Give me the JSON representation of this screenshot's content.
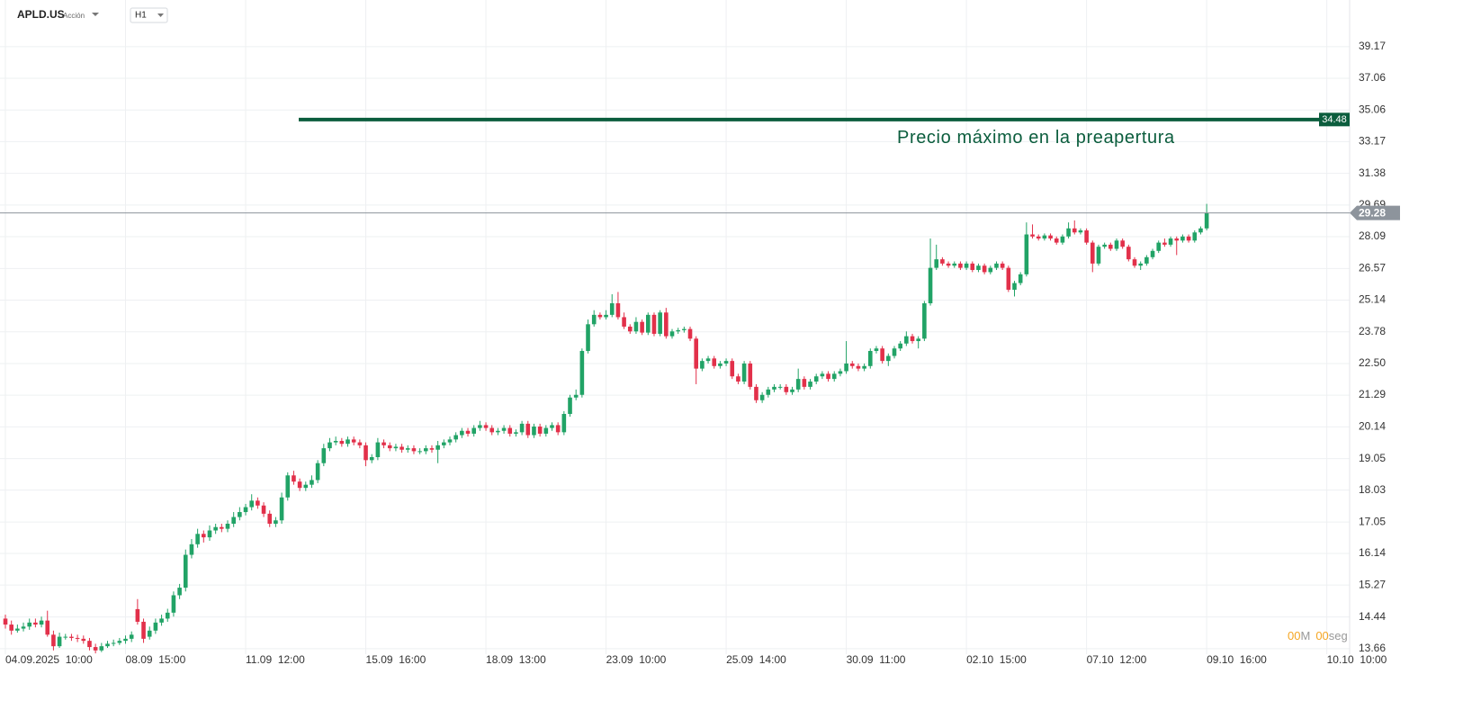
{
  "chart_data": {
    "type": "candlestick",
    "title": "APLD.US",
    "subtitle": "Acción",
    "timeframe": "H1",
    "up_color": "#21a366",
    "down_color": "#e2304a",
    "grid": true,
    "log_scale": true,
    "ylim": [
      13.53,
      42.5
    ],
    "yticks": [
      13.66,
      14.44,
      15.27,
      16.14,
      17.05,
      18.03,
      19.05,
      20.14,
      21.29,
      {
        "value": 22.5,
        "label": "22.50"
      },
      23.78,
      25.14,
      26.57,
      28.09,
      29.69,
      31.38,
      33.17,
      35.06,
      37.06,
      39.17
    ],
    "xlim": [
      -0.9,
      223.8
    ],
    "xticks": [
      {
        "value": 0,
        "label": "04.09.2025  10:00"
      },
      {
        "value": 20,
        "label": "08.09  15:00"
      },
      {
        "value": 40,
        "label": "11.09  12:00"
      },
      {
        "value": 60,
        "label": "15.09  16:00"
      },
      {
        "value": 80,
        "label": "18.09  13:00"
      },
      {
        "value": 100,
        "label": "23.09  10:00"
      },
      {
        "value": 120,
        "label": "25.09  14:00"
      },
      {
        "value": 140,
        "label": "30.09  11:00"
      },
      {
        "value": 160,
        "label": "02.10  15:00"
      },
      {
        "value": 180,
        "label": "07.10  12:00"
      },
      {
        "value": 200,
        "label": "09.10  16:00"
      },
      {
        "value": 220,
        "label": "10.10  10:00"
      }
    ],
    "series": {
      "open": [
        14.4,
        14.25,
        14.1,
        14.15,
        14.2,
        14.3,
        14.25,
        14.35,
        14.0,
        13.72,
        13.95,
        13.95,
        13.92,
        13.9,
        13.85,
        13.7,
        13.62,
        13.72,
        13.78,
        13.8,
        13.85,
        13.9,
        14.64,
        14.32,
        13.95,
        14.1,
        14.3,
        14.4,
        14.55,
        15.0,
        15.2,
        16.1,
        16.4,
        16.7,
        16.6,
        16.8,
        16.9,
        16.85,
        17.0,
        17.2,
        17.35,
        17.5,
        17.7,
        17.55,
        17.3,
        17.0,
        17.1,
        17.8,
        18.5,
        18.3,
        18.1,
        18.2,
        18.35,
        18.9,
        19.4,
        19.6,
        19.65,
        19.55,
        19.7,
        19.6,
        19.5,
        19.0,
        19.1,
        19.6,
        19.5,
        19.4,
        19.45,
        19.35,
        19.4,
        19.3,
        19.3,
        19.4,
        19.35,
        19.5,
        19.6,
        19.7,
        19.85,
        20.0,
        19.9,
        20.1,
        20.2,
        20.1,
        19.95,
        20.0,
        20.1,
        19.9,
        19.95,
        20.25,
        19.85,
        20.15,
        19.9,
        20.1,
        20.2,
        19.95,
        20.6,
        21.2,
        21.3,
        23.0,
        24.1,
        24.5,
        24.4,
        24.5,
        25.0,
        24.4,
        24.0,
        23.8,
        24.2,
        23.75,
        24.5,
        23.7,
        24.6,
        23.6,
        23.8,
        23.85,
        23.9,
        23.5,
        22.3,
        22.6,
        22.7,
        22.4,
        22.5,
        22.6,
        22.0,
        21.8,
        22.5,
        21.6,
        21.1,
        21.3,
        21.5,
        21.6,
        21.6,
        21.4,
        21.5,
        21.9,
        21.6,
        21.8,
        22.0,
        22.1,
        21.9,
        22.1,
        22.2,
        22.5,
        22.4,
        22.3,
        22.4,
        23.0,
        23.1,
        22.6,
        22.8,
        23.1,
        23.3,
        23.6,
        23.4,
        23.5,
        25.0,
        26.6,
        27.0,
        26.8,
        26.7,
        26.8,
        26.6,
        26.8,
        26.5,
        26.7,
        26.4,
        26.6,
        26.8,
        26.6,
        25.6,
        25.9,
        26.3,
        28.2,
        28.1,
        28.0,
        28.15,
        28.0,
        27.8,
        28.1,
        28.5,
        28.3,
        28.4,
        27.8,
        26.8,
        27.6,
        27.7,
        27.5,
        27.9,
        27.6,
        27.0,
        26.7,
        26.8,
        27.1,
        27.4,
        27.8,
        27.7,
        28.0,
        27.9,
        28.1,
        27.9,
        28.3,
        28.5
      ],
      "high": [
        14.5,
        14.35,
        14.25,
        14.3,
        14.4,
        14.4,
        14.45,
        14.6,
        14.1,
        14.05,
        14.02,
        14.02,
        14.0,
        13.98,
        13.92,
        13.78,
        13.8,
        13.85,
        13.88,
        13.92,
        13.98,
        14.08,
        14.9,
        14.4,
        14.2,
        14.4,
        14.5,
        14.65,
        15.1,
        15.3,
        16.25,
        16.55,
        16.85,
        16.8,
        16.95,
        17.0,
        17.0,
        17.1,
        17.35,
        17.5,
        17.6,
        17.9,
        17.8,
        17.65,
        17.4,
        17.2,
        17.95,
        18.6,
        18.65,
        18.4,
        18.3,
        18.5,
        19.0,
        19.55,
        19.75,
        19.8,
        19.75,
        19.8,
        19.8,
        19.7,
        19.6,
        19.2,
        19.75,
        19.7,
        19.6,
        19.55,
        19.55,
        19.5,
        19.5,
        19.4,
        19.5,
        19.5,
        19.65,
        19.7,
        19.8,
        19.95,
        20.1,
        20.1,
        20.2,
        20.35,
        20.3,
        20.2,
        20.1,
        20.2,
        20.2,
        20.05,
        20.35,
        20.35,
        20.25,
        20.25,
        20.2,
        20.3,
        20.3,
        20.7,
        21.3,
        21.5,
        23.1,
        24.3,
        24.7,
        24.6,
        24.7,
        25.4,
        25.5,
        24.6,
        24.1,
        24.4,
        24.3,
        24.6,
        24.6,
        24.7,
        24.8,
        23.9,
        23.95,
        24.0,
        24.0,
        23.6,
        22.7,
        22.8,
        22.8,
        22.6,
        22.7,
        22.7,
        22.1,
        22.6,
        22.6,
        21.7,
        21.4,
        21.6,
        21.7,
        21.7,
        21.7,
        21.6,
        22.3,
        22.0,
        21.9,
        22.1,
        22.2,
        22.2,
        22.2,
        22.3,
        23.4,
        22.6,
        22.5,
        22.5,
        23.1,
        23.2,
        23.2,
        22.9,
        23.2,
        23.4,
        23.8,
        23.7,
        23.6,
        25.1,
        28.0,
        27.7,
        27.1,
        26.9,
        26.9,
        26.9,
        26.9,
        26.9,
        26.8,
        26.8,
        26.7,
        26.9,
        26.9,
        26.7,
        26.0,
        26.4,
        28.8,
        28.7,
        28.2,
        28.25,
        28.25,
        28.1,
        28.2,
        28.8,
        28.9,
        28.5,
        28.5,
        27.9,
        27.7,
        27.8,
        27.8,
        28.0,
        28.0,
        27.7,
        27.1,
        26.9,
        27.2,
        27.5,
        27.9,
        28.0,
        28.1,
        28.1,
        28.2,
        28.2,
        28.4,
        28.6,
        29.75
      ],
      "low": [
        14.15,
        14.0,
        14.05,
        14.08,
        14.12,
        14.18,
        14.18,
        13.95,
        13.62,
        13.68,
        13.88,
        13.85,
        13.82,
        13.78,
        13.62,
        13.55,
        13.58,
        13.68,
        13.72,
        13.75,
        13.78,
        13.82,
        14.25,
        13.8,
        13.88,
        14.02,
        14.22,
        14.32,
        14.45,
        14.9,
        15.1,
        16.0,
        16.3,
        16.45,
        16.5,
        16.7,
        16.75,
        16.75,
        16.9,
        17.1,
        17.25,
        17.4,
        17.45,
        17.2,
        16.9,
        16.9,
        17.0,
        17.7,
        18.2,
        18.0,
        18.0,
        18.1,
        18.25,
        18.8,
        19.3,
        19.5,
        19.45,
        19.45,
        19.5,
        19.4,
        18.8,
        18.9,
        19.0,
        19.4,
        19.3,
        19.3,
        19.25,
        19.25,
        19.2,
        19.2,
        19.2,
        19.25,
        18.9,
        19.4,
        19.5,
        19.6,
        19.75,
        19.8,
        19.8,
        20.0,
        20.0,
        19.85,
        19.85,
        19.9,
        19.8,
        19.8,
        19.85,
        19.75,
        19.75,
        19.8,
        19.8,
        20.0,
        19.85,
        19.85,
        20.5,
        21.1,
        21.2,
        22.9,
        24.0,
        24.3,
        24.3,
        24.4,
        24.3,
        23.9,
        23.7,
        23.7,
        23.65,
        23.65,
        23.6,
        23.6,
        23.5,
        23.5,
        23.7,
        23.75,
        23.4,
        21.7,
        22.2,
        22.5,
        22.3,
        22.3,
        22.4,
        21.9,
        21.7,
        21.7,
        21.5,
        21.0,
        21.0,
        21.2,
        21.4,
        21.5,
        21.3,
        21.3,
        21.4,
        21.5,
        21.5,
        21.7,
        21.9,
        21.8,
        21.8,
        22.0,
        22.1,
        22.3,
        22.2,
        22.2,
        22.3,
        22.9,
        22.5,
        22.4,
        22.7,
        23.0,
        23.2,
        23.3,
        23.1,
        23.4,
        24.9,
        26.5,
        26.7,
        26.6,
        26.6,
        26.5,
        26.5,
        26.4,
        26.4,
        26.3,
        26.3,
        26.5,
        26.5,
        25.5,
        25.3,
        25.8,
        26.2,
        28.0,
        27.9,
        27.9,
        27.9,
        27.7,
        27.7,
        28.0,
        28.2,
        28.2,
        27.7,
        26.4,
        26.7,
        27.5,
        27.4,
        27.4,
        27.5,
        26.9,
        26.6,
        26.5,
        26.7,
        27.0,
        27.3,
        27.6,
        27.6,
        27.2,
        27.8,
        27.8,
        27.8,
        28.2,
        28.4
      ],
      "close": [
        14.25,
        14.1,
        14.15,
        14.2,
        14.3,
        14.25,
        14.35,
        14.0,
        13.72,
        13.95,
        13.95,
        13.92,
        13.9,
        13.85,
        13.7,
        13.62,
        13.72,
        13.78,
        13.8,
        13.85,
        13.9,
        14.0,
        14.32,
        13.9,
        14.1,
        14.3,
        14.4,
        14.55,
        15.0,
        15.2,
        16.1,
        16.4,
        16.7,
        16.6,
        16.8,
        16.9,
        16.85,
        17.0,
        17.2,
        17.35,
        17.5,
        17.7,
        17.55,
        17.3,
        17.0,
        17.1,
        17.8,
        18.5,
        18.3,
        18.1,
        18.2,
        18.35,
        18.9,
        19.4,
        19.6,
        19.65,
        19.55,
        19.7,
        19.6,
        19.5,
        19.0,
        19.1,
        19.6,
        19.5,
        19.4,
        19.45,
        19.35,
        19.4,
        19.3,
        19.3,
        19.4,
        19.35,
        19.5,
        19.6,
        19.7,
        19.85,
        20.0,
        19.9,
        20.1,
        20.2,
        20.1,
        19.95,
        20.0,
        20.1,
        19.9,
        19.95,
        20.25,
        19.85,
        20.15,
        19.9,
        20.1,
        20.2,
        19.95,
        20.6,
        21.2,
        21.3,
        23.0,
        24.1,
        24.5,
        24.4,
        24.5,
        25.0,
        24.4,
        24.0,
        23.8,
        24.2,
        23.75,
        24.5,
        23.7,
        24.6,
        23.6,
        23.8,
        23.85,
        23.9,
        23.5,
        22.3,
        22.6,
        22.7,
        22.4,
        22.5,
        22.6,
        22.0,
        21.8,
        22.5,
        21.6,
        21.1,
        21.3,
        21.5,
        21.6,
        21.6,
        21.4,
        21.5,
        21.9,
        21.6,
        21.8,
        22.0,
        22.1,
        21.9,
        22.1,
        22.2,
        22.5,
        22.4,
        22.3,
        22.4,
        23.0,
        23.1,
        22.6,
        22.8,
        23.1,
        23.3,
        23.6,
        23.4,
        23.5,
        25.0,
        26.6,
        27.0,
        26.8,
        26.7,
        26.8,
        26.6,
        26.8,
        26.5,
        26.7,
        26.4,
        26.6,
        26.8,
        26.6,
        25.6,
        25.9,
        26.3,
        28.2,
        28.1,
        28.0,
        28.15,
        28.0,
        27.8,
        28.1,
        28.5,
        28.3,
        28.4,
        27.8,
        26.8,
        27.6,
        27.7,
        27.5,
        27.9,
        27.6,
        27.0,
        26.7,
        26.8,
        27.1,
        27.4,
        27.8,
        27.7,
        28.0,
        27.9,
        28.1,
        27.9,
        28.3,
        28.5,
        29.28
      ]
    },
    "level_line": {
      "value": 34.48,
      "text": "Precio máximo en la preapertura",
      "color": "#0b5d3d"
    },
    "current_price": {
      "value": 29.28,
      "color": "#8d949c"
    },
    "countdown": {
      "minutes": "00",
      "minutes_unit": "M",
      "seconds": "00",
      "seconds_unit": "seg"
    }
  }
}
